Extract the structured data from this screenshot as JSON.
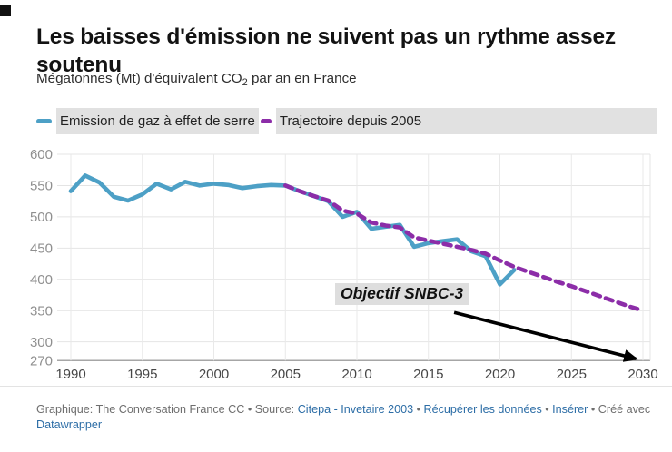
{
  "header": {
    "title": "Les baisses d'émission ne suivent pas un rythme assez soutenu",
    "subtitle_prefix": "Mégatonnes (Mt) d'équivalent CO",
    "subtitle_sub": "2",
    "subtitle_suffix": " par an en France"
  },
  "legend": [
    {
      "label": "Emission de gaz à effet de serre",
      "color": "#4da0c6",
      "style": "solid"
    },
    {
      "label": "Trajectoire depuis 2005",
      "color": "#8c2da8",
      "style": "dashed"
    }
  ],
  "chart_data": {
    "type": "line",
    "title": "Les baisses d'émission ne suivent pas un rythme assez soutenu",
    "ylabel": "Mégatonnes (Mt) d'équivalent CO2 par an en France",
    "xlim": [
      1990,
      2030
    ],
    "ylim": [
      270,
      600
    ],
    "x_ticks": [
      1990,
      1995,
      2000,
      2005,
      2010,
      2015,
      2020,
      2025,
      2030
    ],
    "y_ticks": [
      600,
      550,
      500,
      450,
      400,
      350,
      300,
      270
    ],
    "grid": true,
    "legend_position": "top",
    "series": [
      {
        "name": "Emission de gaz à effet de serre",
        "color": "#4da0c6",
        "style": "solid",
        "x": [
          1990,
          1991,
          1992,
          1993,
          1994,
          1995,
          1996,
          1997,
          1998,
          1999,
          2000,
          2001,
          2002,
          2003,
          2004,
          2005,
          2006,
          2007,
          2008,
          2009,
          2010,
          2011,
          2012,
          2013,
          2014,
          2015,
          2016,
          2017,
          2018,
          2019,
          2020,
          2021
        ],
        "values": [
          541,
          566,
          555,
          532,
          526,
          536,
          553,
          544,
          556,
          550,
          553,
          551,
          546,
          549,
          551,
          550,
          541,
          533,
          525,
          500,
          508,
          481,
          484,
          487,
          452,
          458,
          461,
          464,
          445,
          437,
          392,
          415
        ]
      },
      {
        "name": "Trajectoire depuis 2005",
        "color": "#8c2da8",
        "style": "dashed",
        "x": [
          2005,
          2006,
          2007,
          2008,
          2009,
          2010,
          2011,
          2012,
          2013,
          2014,
          2015,
          2016,
          2017,
          2018,
          2019,
          2020,
          2021,
          2022,
          2023,
          2024,
          2025,
          2026,
          2027,
          2028,
          2029,
          2030
        ],
        "values": [
          550,
          541,
          533,
          526,
          510,
          505,
          491,
          486,
          483,
          467,
          462,
          457,
          452,
          447,
          441,
          430,
          420,
          412,
          404,
          396,
          389,
          381,
          373,
          365,
          357,
          350
        ]
      }
    ],
    "annotation": {
      "text": "Objectif SNBC-3",
      "arrow_from": [
        2016.8,
        347
      ],
      "arrow_to": [
        2029.5,
        273
      ]
    }
  },
  "footer": {
    "prefix": "Graphique: The Conversation France CC • Source: ",
    "source_link": "Citepa - Invetaire 2003",
    "sep1": " • ",
    "data_link": "Récupérer les données",
    "sep2": " • ",
    "embed_link": "Insérer",
    "sep3": " • Créé avec ",
    "datawrapper_link": "Datawrapper"
  }
}
